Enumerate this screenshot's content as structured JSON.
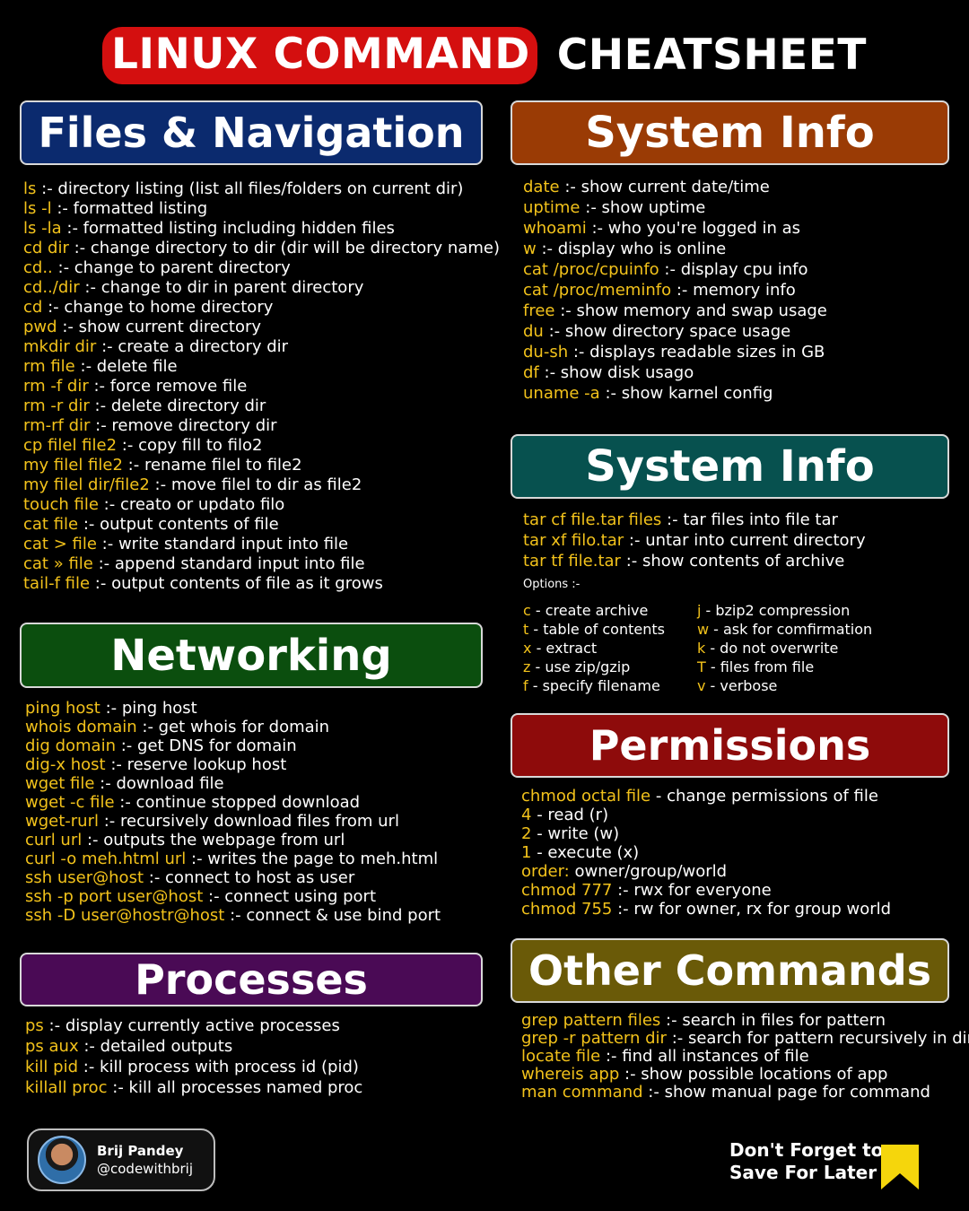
{
  "title": {
    "highlight": "LINUX COMMAND",
    "rest": "CHEATSHEET"
  },
  "colors": {
    "accent_yellow": "#f2c21b",
    "title_red": "#d40f0f",
    "files_header": "#0b2a6e",
    "system_header": "#9a3b05",
    "archive_header": "#07514f",
    "networking_header": "#0b4e0e",
    "processes_header": "#4a0a55",
    "permissions_header": "#8e0b0b",
    "other_header": "#6a5a08"
  },
  "sections": {
    "files": {
      "header": "Files & Navigation",
      "items": [
        {
          "cmd": "ls",
          "desc": ":- directory listing (list all files/folders on current dir)"
        },
        {
          "cmd": "ls -l",
          "desc": ":- formatted listing"
        },
        {
          "cmd": "ls -la",
          "desc": ":- formatted listing including hidden files"
        },
        {
          "cmd": "cd dir",
          "desc": ":- change directory to dir (dir will be directory name)"
        },
        {
          "cmd": "cd..",
          "desc": ":- change to parent directory"
        },
        {
          "cmd": "cd../dir",
          "desc": ":- change to dir in parent directory"
        },
        {
          "cmd": "cd",
          "desc": ":- change to home directory"
        },
        {
          "cmd": "pwd",
          "desc": ":- show current directory"
        },
        {
          "cmd": "mkdir dir",
          "desc": ":- create a directory dir"
        },
        {
          "cmd": "rm file",
          "desc": ":- delete file"
        },
        {
          "cmd": "rm -f dir",
          "desc": ":- force remove file"
        },
        {
          "cmd": "rm -r dir",
          "desc": ":- delete directory dir"
        },
        {
          "cmd": "rm-rf dir",
          "desc": ":- remove directory dir"
        },
        {
          "cmd": "cp filel file2",
          "desc": ":- copy fill to filo2"
        },
        {
          "cmd": "my filel file2",
          "desc": ":- rename filel to file2"
        },
        {
          "cmd": "my filel dir/file2",
          "desc": ":- move filel to dir as file2"
        },
        {
          "cmd": "touch file",
          "desc": ":- creato or updato filo"
        },
        {
          "cmd": "cat file",
          "desc": ":- output contents of file"
        },
        {
          "cmd": "cat > file",
          "desc": ":- write standard input into file"
        },
        {
          "cmd": "cat » file",
          "desc": ":- append standard input into file"
        },
        {
          "cmd": "tail-f file",
          "desc": ":- output contents of file as it grows"
        }
      ]
    },
    "networking": {
      "header": "Networking",
      "items": [
        {
          "cmd": "ping host",
          "desc": ":- ping host"
        },
        {
          "cmd": "whois domain",
          "desc": ":- get whois for domain"
        },
        {
          "cmd": "dig domain",
          "desc": ":- get DNS for domain"
        },
        {
          "cmd": "dig-x host",
          "desc": ":- reserve lookup host"
        },
        {
          "cmd": "wget file",
          "desc": ":- download file"
        },
        {
          "cmd": "wget -c file",
          "desc": ":- continue stopped download"
        },
        {
          "cmd": "wget-rurl",
          "desc": ":- recursively download files from url"
        },
        {
          "cmd": "curl url",
          "desc": ":- outputs the webpage from url"
        },
        {
          "cmd": "curl -o meh.html url",
          "desc": ":- writes the page to meh.html"
        },
        {
          "cmd": "ssh user@host",
          "desc": ":- connect to host as user"
        },
        {
          "cmd": "ssh -p port user@host",
          "desc": ":- connect using port"
        },
        {
          "cmd": "ssh -D user@hostr@host",
          "desc": ":- connect & use bind port"
        }
      ]
    },
    "processes": {
      "header": "Processes",
      "items": [
        {
          "cmd": "ps",
          "desc": ":- display currently active processes"
        },
        {
          "cmd": "ps aux",
          "desc": ":- detailed outputs"
        },
        {
          "cmd": "kill pid",
          "desc": ":- kill process with process id (pid)"
        },
        {
          "cmd": "killall proc",
          "desc": ":- kill all processes named proc"
        }
      ]
    },
    "system": {
      "header": "System Info",
      "items": [
        {
          "cmd": "date",
          "desc": ":- show current date/time"
        },
        {
          "cmd": "uptime",
          "desc": ":- show uptime"
        },
        {
          "cmd": "whoami",
          "desc": ":- who you're logged in as"
        },
        {
          "cmd": "w",
          "desc": ":- display who is online"
        },
        {
          "cmd": "cat /proc/cpuinfo",
          "desc": ":- display cpu info"
        },
        {
          "cmd": "cat /proc/meminfo",
          "desc": ":- memory info"
        },
        {
          "cmd": "free",
          "desc": ":- show memory and swap usage"
        },
        {
          "cmd": "du",
          "desc": ":- show directory space usage"
        },
        {
          "cmd": "du-sh",
          "desc": ":- displays readable sizes in GB"
        },
        {
          "cmd": "df",
          "desc": ":- show disk usago"
        },
        {
          "cmd": "uname -a",
          "desc": ":- show karnel config"
        }
      ]
    },
    "archive": {
      "header": "System Info",
      "items": [
        {
          "cmd": "tar cf file.tar files",
          "desc": ":- tar files into file tar"
        },
        {
          "cmd": "tar xf filo.tar",
          "desc": ":- untar into current directory"
        },
        {
          "cmd": "tar tf file.tar",
          "desc": ":- show contents of archive"
        }
      ],
      "options_label": "Options :-",
      "options_left": [
        {
          "cmd": "c",
          "desc": "- create archive"
        },
        {
          "cmd": "t",
          "desc": "- table of contents"
        },
        {
          "cmd": "x",
          "desc": "- extract"
        },
        {
          "cmd": "z",
          "desc": "- use zip/gzip"
        },
        {
          "cmd": "f",
          "desc": "- specify filename"
        }
      ],
      "options_right": [
        {
          "cmd": "j",
          "desc": "- bzip2 compression"
        },
        {
          "cmd": "w",
          "desc": "- ask for comfirmation"
        },
        {
          "cmd": "k",
          "desc": "- do not overwrite"
        },
        {
          "cmd": "T",
          "desc": "- files from file"
        },
        {
          "cmd": "v",
          "desc": "- verbose"
        }
      ]
    },
    "permissions": {
      "header": "Permissions",
      "items": [
        {
          "cmd": "chmod octal file",
          "desc": "- change permissions of file"
        },
        {
          "cmd": "4",
          "desc": "- read (r)"
        },
        {
          "cmd": "2",
          "desc": "- write (w)"
        },
        {
          "cmd": "1",
          "desc": "- execute (x)"
        },
        {
          "cmd": "order:",
          "desc": "owner/group/world"
        },
        {
          "cmd": "chmod 777",
          "desc": ":- rwx for everyone"
        },
        {
          "cmd": "chmod 755",
          "desc": ":- rw for owner, rx for group world"
        }
      ]
    },
    "other": {
      "header": "Other Commands",
      "items": [
        {
          "cmd": "grep pattern files",
          "desc": ":- search in files for pattern"
        },
        {
          "cmd": "grep -r pattern dir",
          "desc": ":- search for pattern recursively in dir"
        },
        {
          "cmd": "locate file",
          "desc": ":- find all instances of file"
        },
        {
          "cmd": "whereis app",
          "desc": ":- show possible locations of app"
        },
        {
          "cmd": "man command",
          "desc": ":- show manual page for command"
        }
      ]
    }
  },
  "author": {
    "name": "Brij Pandey",
    "handle": "@codewithbrij"
  },
  "cta": {
    "line1": "Don't Forget to",
    "line2": "Save For Later",
    "icon": "bookmark-icon"
  }
}
